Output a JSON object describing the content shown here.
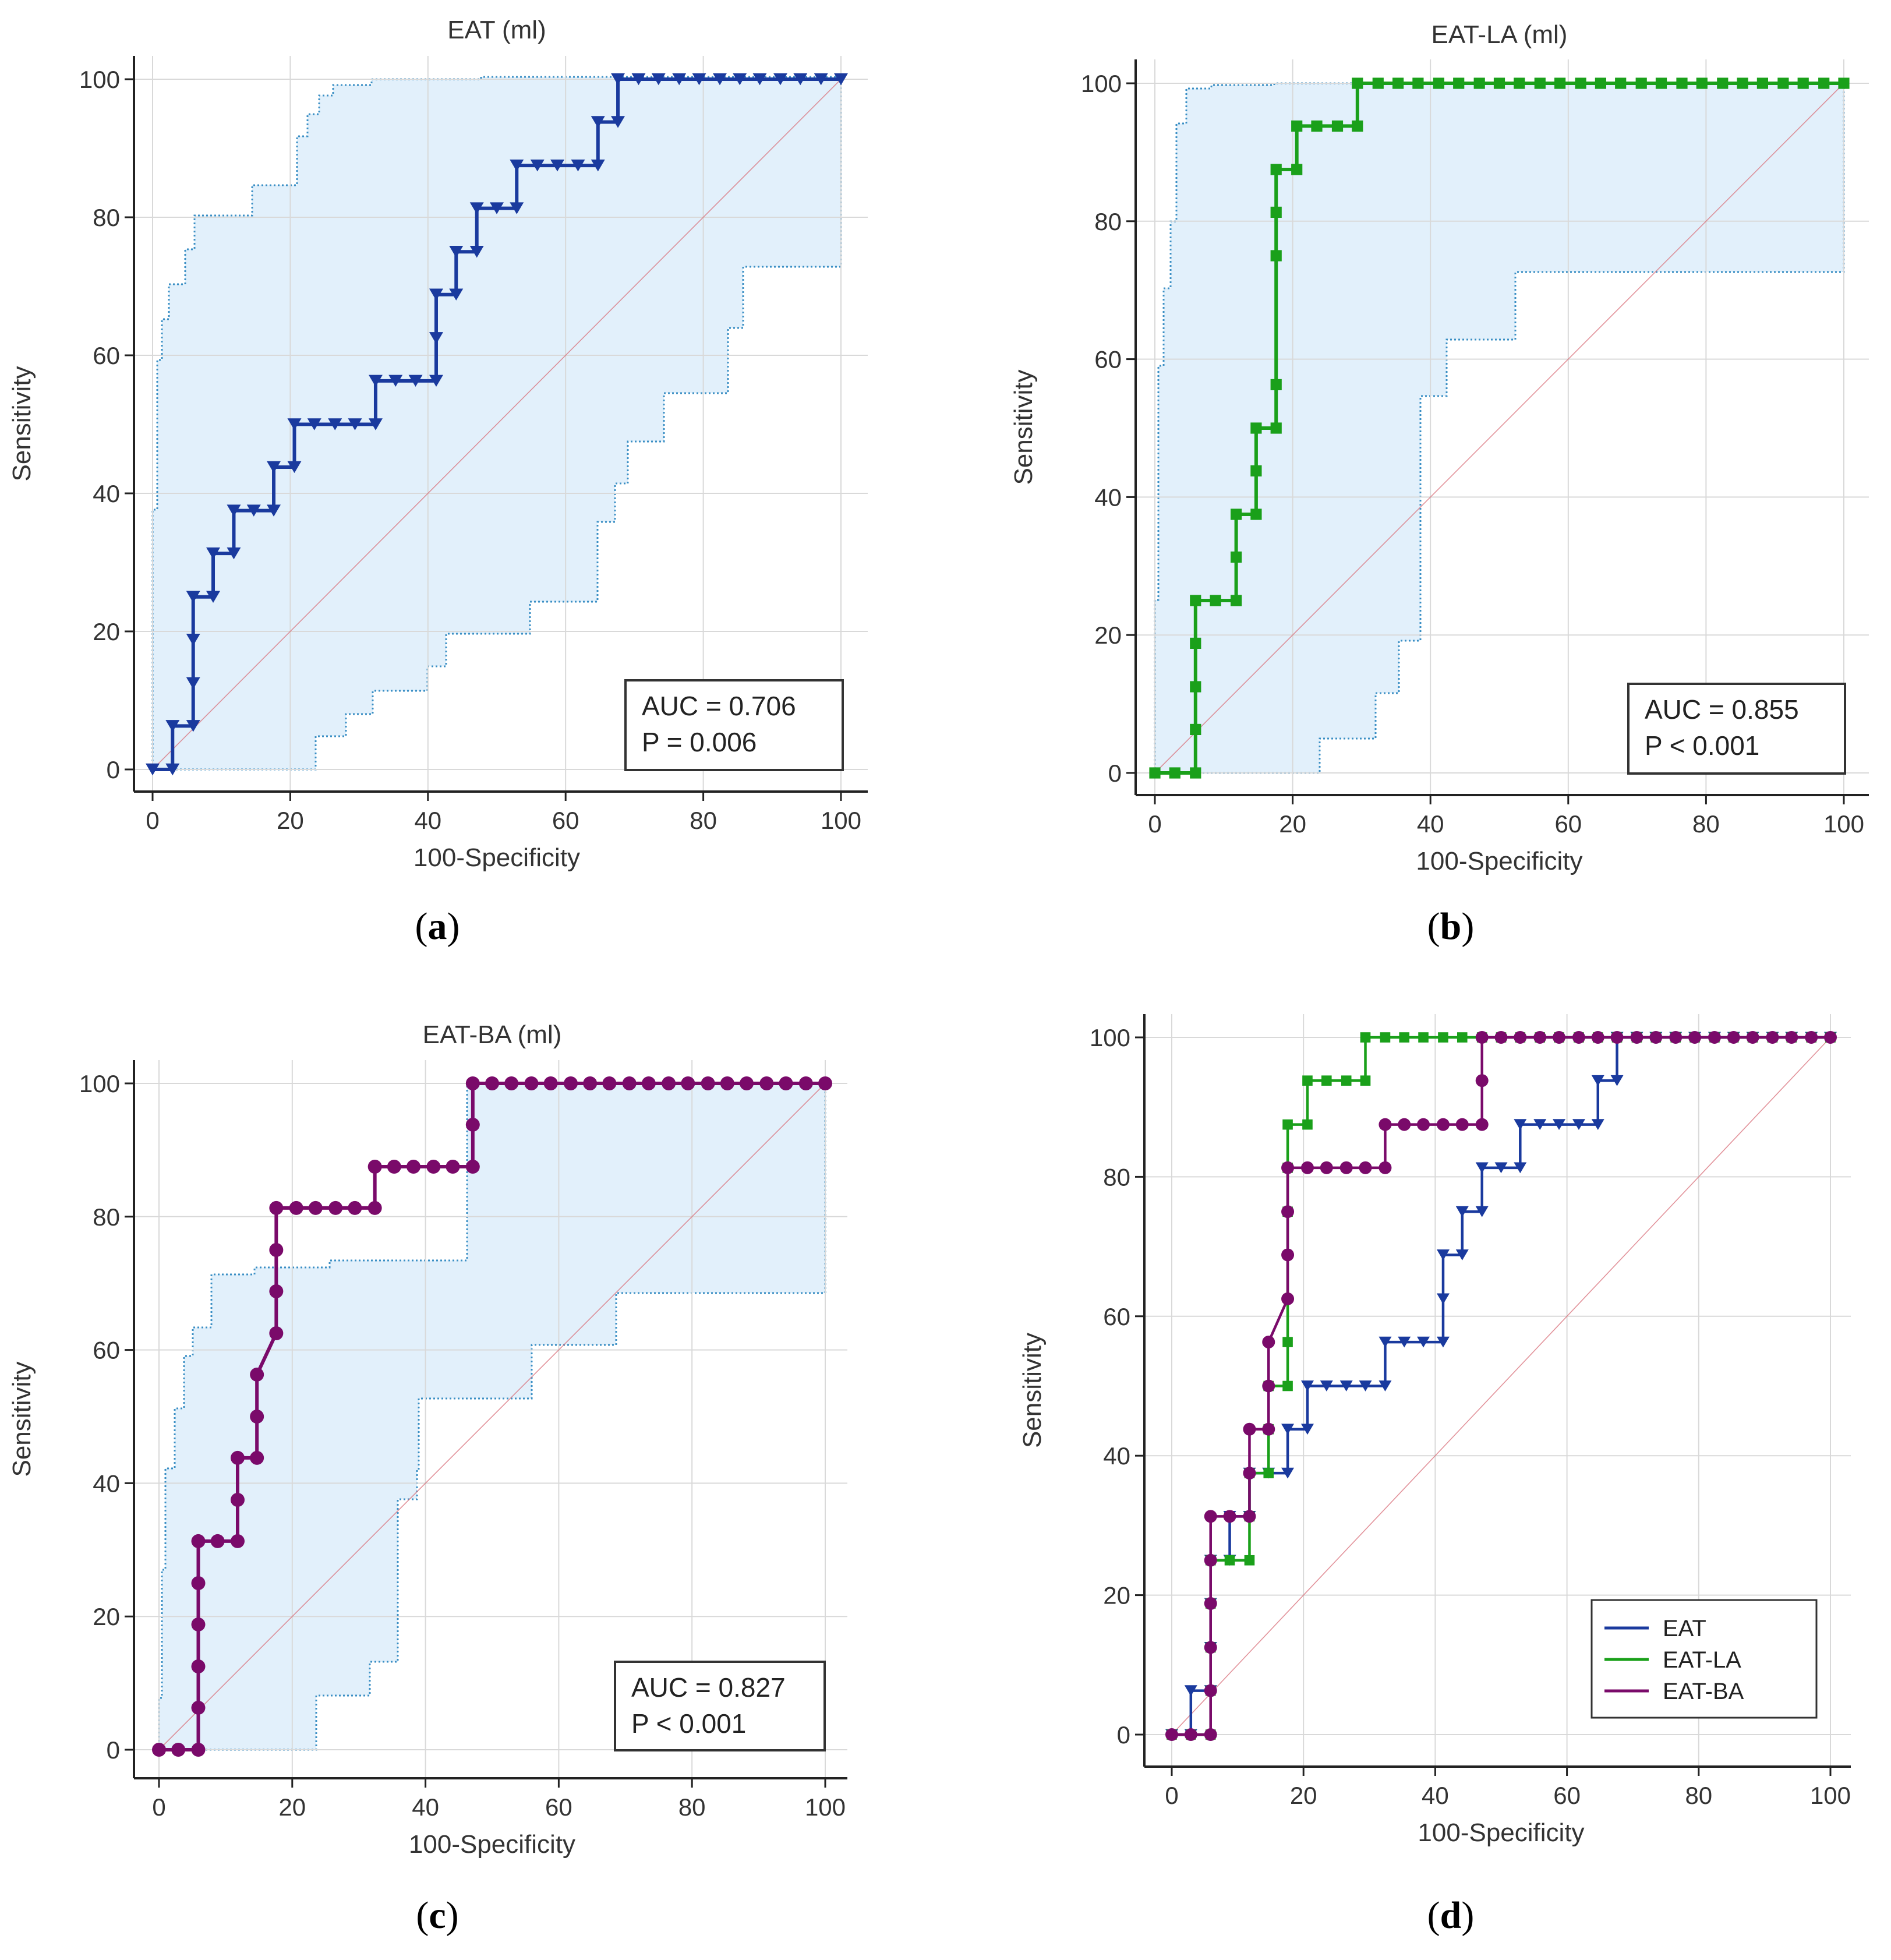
{
  "chart_data": [
    {
      "type": "line",
      "subtype": "roc",
      "panel_label": "a",
      "title": "EAT (ml)",
      "xlabel": "100-Specificity",
      "ylabel": "Sensitivity",
      "xlim": [
        0,
        100
      ],
      "ylim": [
        0,
        100
      ],
      "xticks": [
        "0",
        "20",
        "40",
        "60",
        "80",
        "100"
      ],
      "yticks": [
        "0",
        "20",
        "40",
        "60",
        "80",
        "100"
      ],
      "grid": true,
      "confidence_band": true,
      "annotation": [
        "AUC = 0.706",
        "P = 0.006"
      ],
      "series": [
        {
          "name": "EAT",
          "color": "#1a3a9e",
          "marker": "triangle-down",
          "x": [
            0,
            2.9,
            2.9,
            5.9,
            5.9,
            5.9,
            5.9,
            8.8,
            8.8,
            11.8,
            11.8,
            14.7,
            17.6,
            17.6,
            20.6,
            20.6,
            23.5,
            26.5,
            29.4,
            32.4,
            32.4,
            35.3,
            38.2,
            41.2,
            41.2,
            41.2,
            44.1,
            44.1,
            47.1,
            47.1,
            50,
            52.9,
            52.9,
            55.9,
            58.8,
            61.8,
            64.7,
            64.7,
            67.6,
            67.6,
            70.6,
            73.5,
            76.5,
            79.4,
            82.4,
            85.3,
            88.2,
            91.2,
            94.1,
            97.1,
            100
          ],
          "y": [
            0,
            0,
            6.3,
            6.3,
            12.5,
            18.8,
            25,
            25,
            31.3,
            31.3,
            37.5,
            37.5,
            37.5,
            43.8,
            43.8,
            50,
            50,
            50,
            50,
            50,
            56.3,
            56.3,
            56.3,
            56.3,
            62.5,
            68.8,
            68.8,
            75,
            75,
            81.3,
            81.3,
            81.3,
            87.5,
            87.5,
            87.5,
            87.5,
            87.5,
            93.8,
            93.8,
            100,
            100,
            100,
            100,
            100,
            100,
            100,
            100,
            100,
            100,
            100,
            100
          ]
        }
      ]
    },
    {
      "type": "line",
      "subtype": "roc",
      "panel_label": "b",
      "title": "EAT-LA (ml)",
      "xlabel": "100-Specificity",
      "ylabel": "Sensitivity",
      "xlim": [
        0,
        100
      ],
      "ylim": [
        0,
        100
      ],
      "xticks": [
        "0",
        "20",
        "40",
        "60",
        "80",
        "100"
      ],
      "yticks": [
        "0",
        "20",
        "40",
        "60",
        "80",
        "100"
      ],
      "grid": true,
      "confidence_band": true,
      "annotation": [
        "AUC = 0.855",
        "P < 0.001"
      ],
      "series": [
        {
          "name": "EAT-LA",
          "color": "#1aa01a",
          "marker": "square",
          "x": [
            0,
            2.9,
            5.9,
            5.9,
            5.9,
            5.9,
            5.9,
            8.8,
            11.8,
            11.8,
            11.8,
            14.7,
            14.7,
            14.7,
            17.6,
            17.6,
            17.6,
            17.6,
            17.6,
            20.6,
            20.6,
            23.5,
            26.5,
            29.4,
            29.4,
            32.4,
            35.3,
            38.2,
            41.2,
            44.1,
            47.1,
            50,
            52.9,
            55.9,
            58.8,
            61.8,
            64.7,
            67.6,
            70.6,
            73.5,
            76.5,
            79.4,
            82.4,
            85.3,
            88.2,
            91.2,
            94.1,
            97.1,
            100
          ],
          "y": [
            0,
            0,
            0,
            6.3,
            12.5,
            18.8,
            25,
            25,
            25,
            31.3,
            37.5,
            37.5,
            43.8,
            50,
            50,
            56.3,
            75,
            81.3,
            87.5,
            87.5,
            93.8,
            93.8,
            93.8,
            93.8,
            100,
            100,
            100,
            100,
            100,
            100,
            100,
            100,
            100,
            100,
            100,
            100,
            100,
            100,
            100,
            100,
            100,
            100,
            100,
            100,
            100,
            100,
            100,
            100,
            100
          ]
        }
      ]
    },
    {
      "type": "line",
      "subtype": "roc",
      "panel_label": "c",
      "title": "EAT-BA (ml)",
      "xlabel": "100-Specificity",
      "ylabel": "Sensitivity",
      "xlim": [
        0,
        100
      ],
      "ylim": [
        0,
        100
      ],
      "xticks": [
        "0",
        "20",
        "40",
        "60",
        "80",
        "100"
      ],
      "yticks": [
        "0",
        "20",
        "40",
        "60",
        "80",
        "100"
      ],
      "grid": true,
      "confidence_band": true,
      "annotation": [
        "AUC = 0.827",
        "P < 0.001"
      ],
      "series": [
        {
          "name": "EAT-BA",
          "color": "#7a0a6a",
          "marker": "circle",
          "x": [
            0,
            2.9,
            5.9,
            5.9,
            5.9,
            5.9,
            5.9,
            5.9,
            8.8,
            11.8,
            11.8,
            11.8,
            14.7,
            14.7,
            14.7,
            17.6,
            17.6,
            17.6,
            17.6,
            20.6,
            23.5,
            26.5,
            29.4,
            32.4,
            32.4,
            35.3,
            38.2,
            41.2,
            44.1,
            47.1,
            47.1,
            47.1,
            50,
            52.9,
            55.9,
            58.8,
            61.8,
            64.7,
            67.6,
            70.6,
            73.5,
            76.5,
            79.4,
            82.4,
            85.3,
            88.2,
            91.2,
            94.1,
            97.1,
            100
          ],
          "y": [
            0,
            0,
            0,
            6.3,
            12.5,
            18.8,
            25,
            31.3,
            31.3,
            31.3,
            37.5,
            43.8,
            43.8,
            50,
            56.3,
            62.5,
            68.8,
            75,
            81.3,
            81.3,
            81.3,
            81.3,
            81.3,
            81.3,
            87.5,
            87.5,
            87.5,
            87.5,
            87.5,
            87.5,
            93.8,
            100,
            100,
            100,
            100,
            100,
            100,
            100,
            100,
            100,
            100,
            100,
            100,
            100,
            100,
            100,
            100,
            100,
            100,
            100
          ]
        }
      ]
    },
    {
      "type": "line",
      "subtype": "roc",
      "panel_label": "d",
      "title": "",
      "xlabel": "100-Specificity",
      "ylabel": "Sensitivity",
      "xlim": [
        0,
        100
      ],
      "ylim": [
        0,
        100
      ],
      "xticks": [
        "0",
        "20",
        "40",
        "60",
        "80",
        "100"
      ],
      "yticks": [
        "0",
        "20",
        "40",
        "60",
        "80",
        "100"
      ],
      "grid": true,
      "confidence_band": false,
      "legend": {
        "placement": "bottom-right",
        "entries": [
          "EAT",
          "EAT-LA",
          "EAT-BA"
        ]
      },
      "series_refs": [
        0,
        1,
        2
      ]
    }
  ]
}
